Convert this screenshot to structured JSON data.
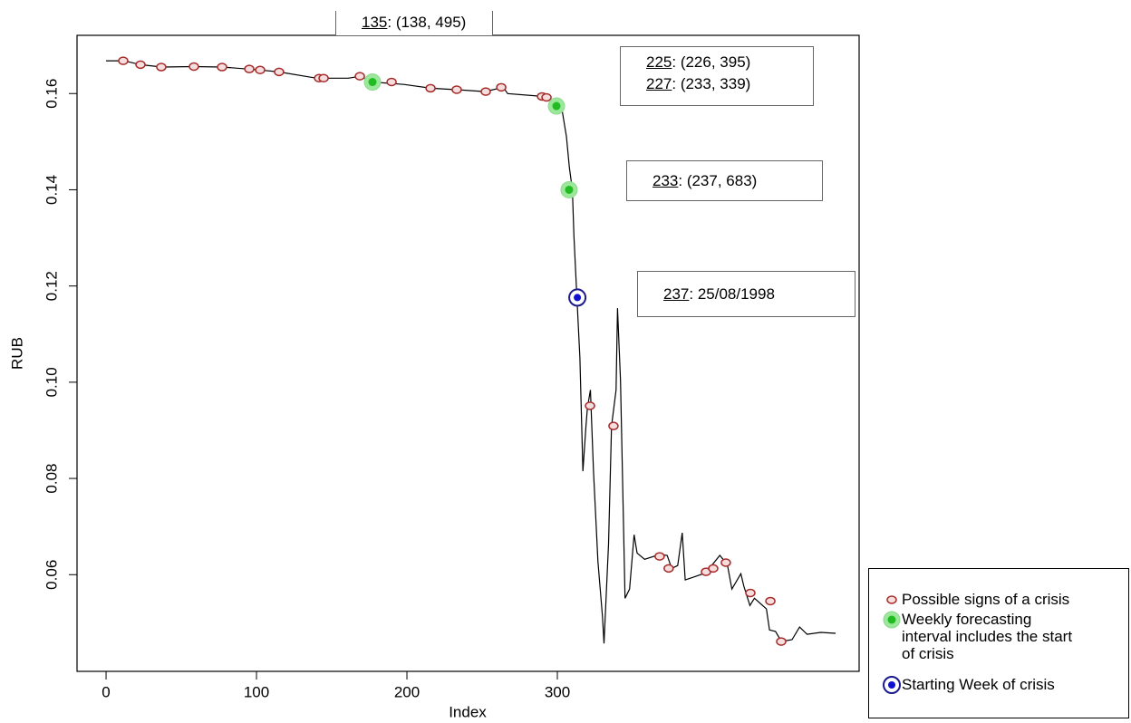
{
  "chart_data": {
    "type": "line",
    "xlabel": "Index",
    "ylabel": "RUB",
    "xlim": [
      -19.3,
      500.6
    ],
    "ylim": [
      0.0399,
      0.1721
    ],
    "xticks": [
      0,
      100,
      200,
      300
    ],
    "yticks": [
      0.06,
      0.08,
      {
        "value": 0.1,
        "label": "0.10"
      },
      0.12,
      0.14,
      0.16
    ],
    "line": {
      "color": "#000000",
      "x": [
        0,
        12,
        23,
        37,
        58,
        77,
        102,
        115,
        140,
        161,
        169,
        177,
        198,
        216,
        233,
        252,
        264,
        267,
        290,
        293,
        299,
        303,
        306,
        308,
        310,
        311,
        313,
        315,
        317,
        319,
        320,
        322,
        324,
        327,
        330,
        331,
        334,
        336,
        339,
        340,
        342,
        345,
        348,
        351,
        353,
        358,
        368,
        373,
        376,
        380,
        383,
        385,
        399,
        401,
        408,
        413,
        416,
        422,
        424,
        428,
        431,
        439,
        441,
        445,
        449,
        456,
        461,
        466,
        475,
        485
      ],
      "values": [
        0.1668,
        0.1668,
        0.166,
        0.1655,
        0.1656,
        0.1655,
        0.1649,
        0.1645,
        0.1632,
        0.1632,
        0.1636,
        0.1624,
        0.1619,
        0.1611,
        0.1608,
        0.1604,
        0.1613,
        0.16,
        0.1594,
        0.1592,
        0.1576,
        0.1568,
        0.1511,
        0.1446,
        0.14,
        0.1304,
        0.1176,
        0.105,
        0.0815,
        0.0909,
        0.0947,
        0.0984,
        0.0815,
        0.0627,
        0.0513,
        0.0457,
        0.0664,
        0.0909,
        0.0984,
        0.1154,
        0.1003,
        0.0551,
        0.057,
        0.0683,
        0.0645,
        0.0632,
        0.0642,
        0.064,
        0.0613,
        0.0619,
        0.0687,
        0.0589,
        0.0604,
        0.0613,
        0.064,
        0.0621,
        0.057,
        0.0602,
        0.0576,
        0.0536,
        0.0551,
        0.0529,
        0.0485,
        0.0482,
        0.0461,
        0.0465,
        0.0491,
        0.0476,
        0.048,
        0.0478
      ]
    },
    "series": [
      {
        "name": "Possible signs of a crisis",
        "color": "#a52a2a",
        "x": [
          11.4,
          22.9,
          36.7,
          58.4,
          77.1,
          95.2,
          102.4,
          115,
          141.6,
          144.6,
          168.7,
          189.8,
          215.7,
          233.1,
          252.4,
          262.7,
          289.8,
          292.8,
          321.7,
          337.3,
          368,
          374,
          398.8,
          403.6,
          412,
          428.3,
          441.6,
          448.8
        ],
        "values": [
          0.1668,
          0.166,
          0.1655,
          0.1656,
          0.1655,
          0.1651,
          0.1649,
          0.1645,
          0.1632,
          0.1632,
          0.1636,
          0.1624,
          0.1611,
          0.1608,
          0.1604,
          0.1613,
          0.1594,
          0.1592,
          0.0951,
          0.0909,
          0.0638,
          0.0613,
          0.0606,
          0.0613,
          0.0625,
          0.0562,
          0.0545,
          0.0461
        ]
      },
      {
        "name": "Weekly forecasting interval includes the start of crisis",
        "color": "#22bb22",
        "x": [
          177.1,
          299.4,
          307.8
        ],
        "values": [
          0.1624,
          0.1574,
          0.14
        ]
      },
      {
        "name": "Starting Week of crisis",
        "color": "#1a1a8c",
        "x": [
          313.3
        ],
        "values": [
          0.1176
        ]
      }
    ],
    "annotations": [
      {
        "id": "135",
        "text": ": (138, 495)"
      },
      {
        "id": "225",
        "text": ": (226, 395)"
      },
      {
        "id": "227",
        "text": ": (233, 339)"
      },
      {
        "id": "233",
        "text": ": (237, 683)"
      },
      {
        "id": "237",
        "text": ": 25/08/1998"
      }
    ]
  }
}
